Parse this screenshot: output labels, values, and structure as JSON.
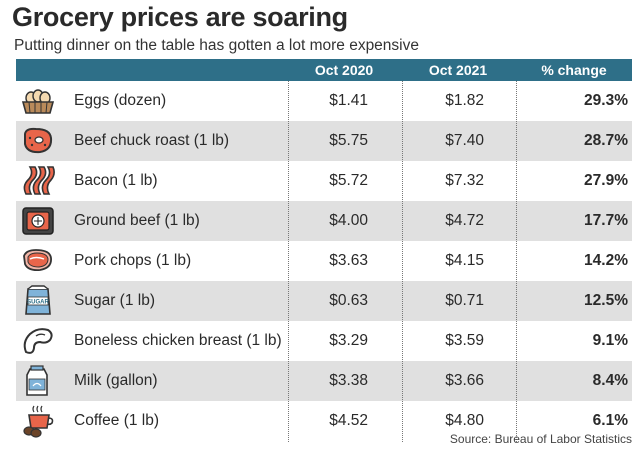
{
  "title": "Grocery prices are soaring",
  "subtitle": "Putting dinner on the table has gotten a lot more expensive",
  "source": "Source: Bureau of Labor Statistics",
  "colors": {
    "header": "#2e6f88",
    "row_shade": "#e0e0e0",
    "icon_orange": "#e8654a",
    "icon_dark": "#333333"
  },
  "chart_data": {
    "type": "table",
    "title": "Grocery prices are soaring",
    "subtitle": "Putting dinner on the table has gotten a lot more expensive",
    "columns": [
      "",
      "Oct 2020",
      "Oct 2021",
      "% change"
    ],
    "rows": [
      {
        "item": "Eggs (dozen)",
        "icon": "eggs-icon",
        "oct_2020": "$1.41",
        "oct_2021": "$1.82",
        "change": "29.3%"
      },
      {
        "item": "Beef chuck roast (1 lb)",
        "icon": "steak-icon",
        "oct_2020": "$5.75",
        "oct_2021": "$7.40",
        "change": "28.7%"
      },
      {
        "item": "Bacon (1 lb)",
        "icon": "bacon-icon",
        "oct_2020": "$5.72",
        "oct_2021": "$7.32",
        "change": "27.9%"
      },
      {
        "item": "Ground beef (1 lb)",
        "icon": "ground-beef-icon",
        "oct_2020": "$4.00",
        "oct_2021": "$4.72",
        "change": "17.7%"
      },
      {
        "item": "Pork chops (1 lb)",
        "icon": "pork-chop-icon",
        "oct_2020": "$3.63",
        "oct_2021": "$4.15",
        "change": "14.2%"
      },
      {
        "item": "Sugar (1 lb)",
        "icon": "sugar-icon",
        "icon_text": "SUGAR",
        "oct_2020": "$0.63",
        "oct_2021": "$0.71",
        "change": "12.5%"
      },
      {
        "item": "Boneless chicken breast (1 lb)",
        "icon": "chicken-breast-icon",
        "oct_2020": "$3.29",
        "oct_2021": "$3.59",
        "change": "9.1%"
      },
      {
        "item": "Milk (gallon)",
        "icon": "milk-icon",
        "oct_2020": "$3.38",
        "oct_2021": "$3.66",
        "change": "8.4%"
      },
      {
        "item": "Coffee (1 lb)",
        "icon": "coffee-icon",
        "oct_2020": "$4.52",
        "oct_2021": "$4.80",
        "change": "6.1%"
      }
    ]
  }
}
